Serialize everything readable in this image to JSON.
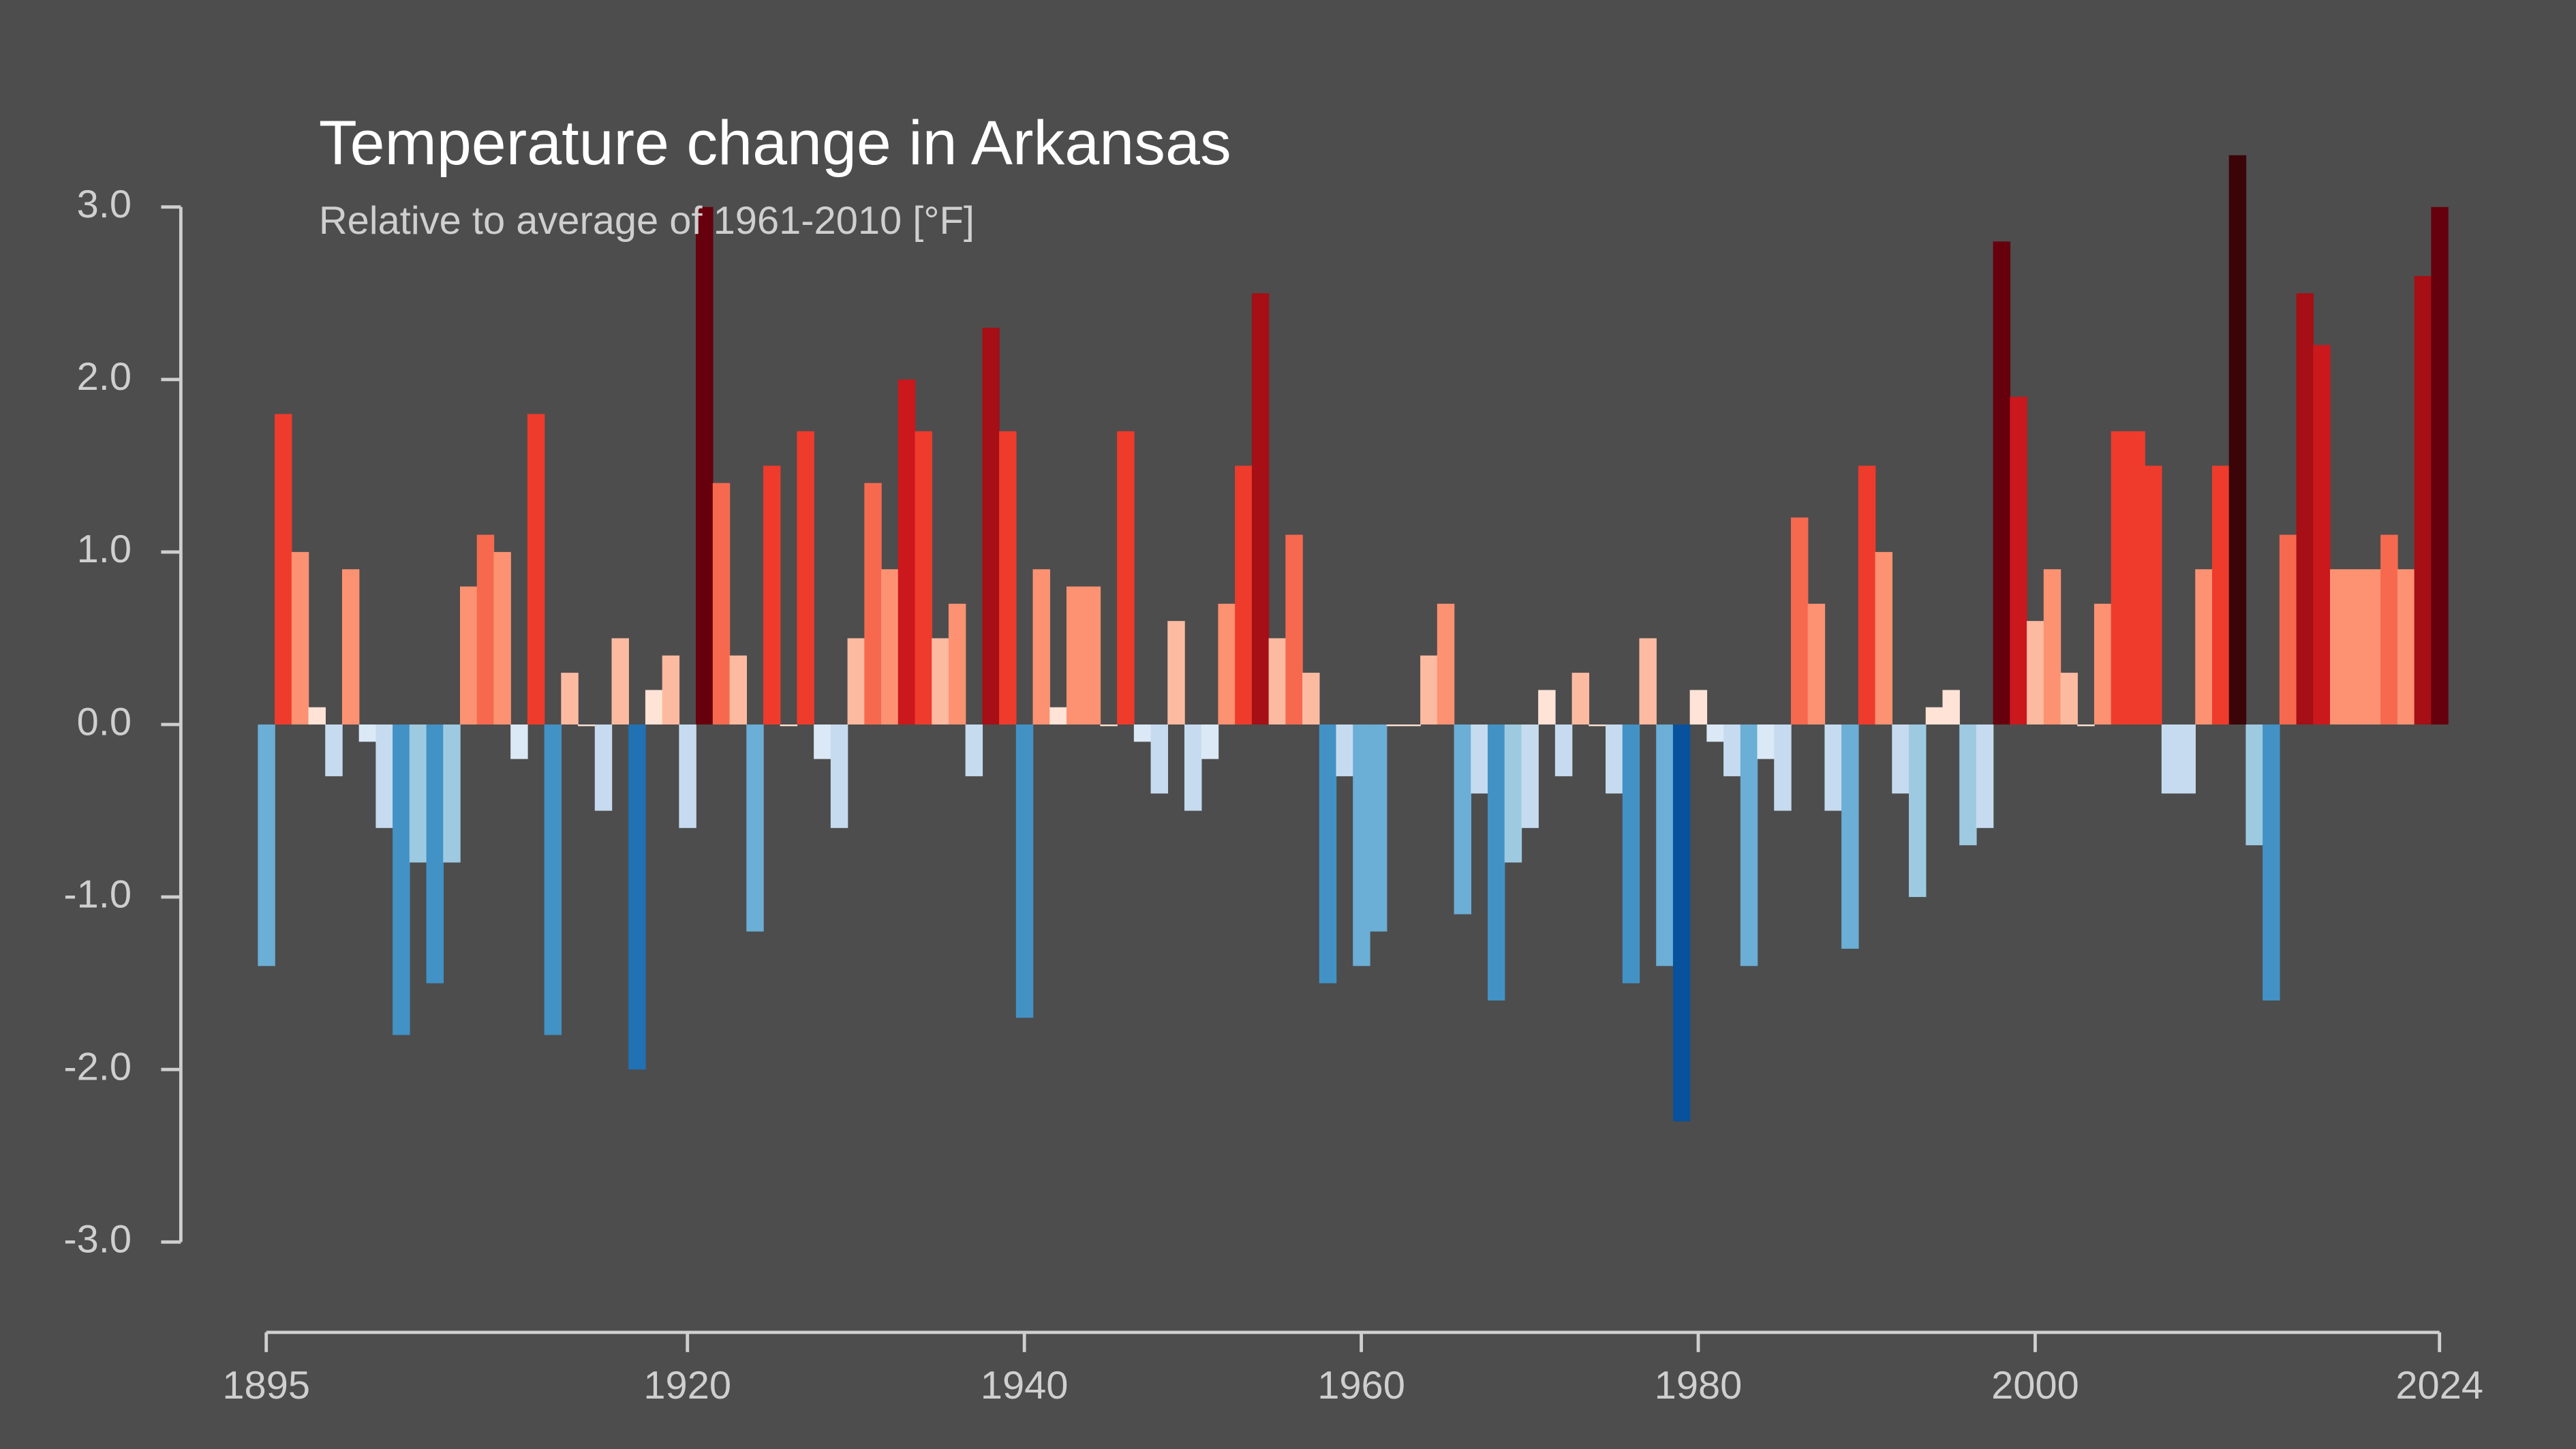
{
  "chart_data": {
    "type": "bar",
    "title": "Temperature change in Arkansas",
    "subtitle": "Relative to average of 1961-2010  [°F]",
    "x": [
      1895,
      1896,
      1897,
      1898,
      1899,
      1900,
      1901,
      1902,
      1903,
      1904,
      1905,
      1906,
      1907,
      1908,
      1909,
      1910,
      1911,
      1912,
      1913,
      1914,
      1915,
      1916,
      1917,
      1918,
      1919,
      1920,
      1921,
      1922,
      1923,
      1924,
      1925,
      1926,
      1927,
      1928,
      1929,
      1930,
      1931,
      1932,
      1933,
      1934,
      1935,
      1936,
      1937,
      1938,
      1939,
      1940,
      1941,
      1942,
      1943,
      1944,
      1945,
      1946,
      1947,
      1948,
      1949,
      1950,
      1951,
      1952,
      1953,
      1954,
      1955,
      1956,
      1957,
      1958,
      1959,
      1960,
      1961,
      1962,
      1963,
      1964,
      1965,
      1966,
      1967,
      1968,
      1969,
      1970,
      1971,
      1972,
      1973,
      1974,
      1975,
      1976,
      1977,
      1978,
      1979,
      1980,
      1981,
      1982,
      1983,
      1984,
      1985,
      1986,
      1987,
      1988,
      1989,
      1990,
      1991,
      1992,
      1993,
      1994,
      1995,
      1996,
      1997,
      1998,
      1999,
      2000,
      2001,
      2002,
      2003,
      2004,
      2005,
      2006,
      2007,
      2008,
      2009,
      2010,
      2011,
      2012,
      2013,
      2014,
      2015,
      2016,
      2017,
      2018,
      2019,
      2020,
      2021,
      2022,
      2023,
      2024
    ],
    "values": [
      -1.4,
      1.8,
      1.0,
      0.1,
      -0.3,
      0.9,
      -0.1,
      -0.6,
      -1.8,
      -0.8,
      -1.5,
      -0.8,
      0.8,
      1.1,
      1.0,
      -0.2,
      1.8,
      -1.8,
      0.3,
      0.0,
      -0.5,
      0.5,
      -2.0,
      0.2,
      0.4,
      -0.6,
      3.0,
      1.4,
      0.4,
      -1.2,
      1.5,
      0.0,
      1.7,
      -0.2,
      -0.6,
      0.5,
      1.4,
      0.9,
      2.0,
      1.7,
      0.5,
      0.7,
      -0.3,
      2.3,
      1.7,
      -1.7,
      0.9,
      0.1,
      0.8,
      0.8,
      0.0,
      1.7,
      -0.1,
      -0.4,
      0.6,
      -0.5,
      -0.2,
      0.7,
      1.5,
      2.5,
      0.5,
      1.1,
      0.3,
      -1.5,
      -0.3,
      -1.4,
      -1.2,
      0.0,
      0.0,
      0.4,
      0.7,
      -1.1,
      -0.4,
      -1.6,
      -0.8,
      -0.6,
      0.2,
      -0.3,
      0.3,
      0.0,
      -0.4,
      -1.5,
      0.5,
      -1.4,
      -2.3,
      0.2,
      -0.1,
      -0.3,
      -1.4,
      -0.2,
      -0.5,
      1.2,
      0.7,
      -0.5,
      -1.3,
      1.5,
      1.0,
      -0.4,
      -1.0,
      0.1,
      0.2,
      -0.7,
      -0.6,
      2.8,
      1.9,
      0.6,
      0.9,
      0.3,
      0.0,
      0.7,
      1.7,
      1.7,
      1.5,
      -0.4,
      -0.4,
      0.9,
      1.5,
      3.3,
      -0.7,
      -1.6,
      1.1,
      2.5,
      2.2,
      0.9,
      0.9,
      0.9,
      1.1,
      0.9,
      2.6,
      3.0
    ],
    "palette": {
      "positive": [
        "#ffe3d6",
        "#fcbba1",
        "#fc9272",
        "#f6694e",
        "#ef3b2c",
        "#cb181d",
        "#a50f15",
        "#67000d",
        "#3b0508"
      ],
      "negative": [
        "#dbe9f6",
        "#c6dbef",
        "#9ecae1",
        "#6baed6",
        "#4292c6",
        "#2171b5",
        "#08519c",
        "#08306b",
        "#08306b"
      ]
    },
    "xlim": [
      1895,
      2024
    ],
    "xticks": [
      1895,
      1920,
      1940,
      1960,
      1980,
      2000,
      2024
    ],
    "ylim": [
      -3,
      3
    ],
    "yticks": [
      {
        "value": -3,
        "label": "-3.0"
      },
      {
        "value": -2,
        "label": "-2.0"
      },
      {
        "value": -1,
        "label": "-1.0"
      },
      {
        "value": 0,
        "label": "0.0"
      },
      {
        "value": 1,
        "label": "1.0"
      },
      {
        "value": 2,
        "label": "2.0"
      },
      {
        "value": 3,
        "label": "3.0"
      }
    ]
  }
}
